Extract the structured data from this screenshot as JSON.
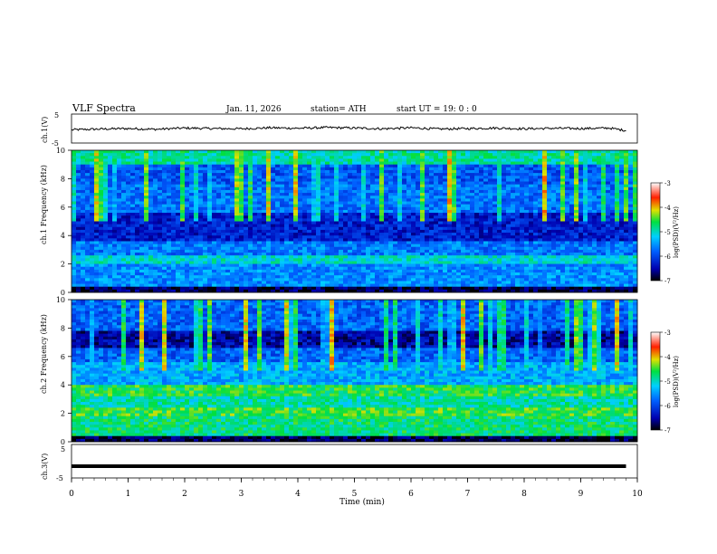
{
  "header": {
    "title": "VLF  Spectra",
    "date": "Jan. 11, 2026",
    "station": "station= ATH",
    "start_ut": "start  UT  =    19: 0   : 0"
  },
  "colorbar": {
    "label": "log(PSD)(V²/Hz)",
    "ticks": [
      "-3",
      "-4",
      "-5",
      "-6",
      "-7"
    ]
  },
  "chart_data": [
    {
      "type": "line",
      "name": "ch.1 waveform",
      "ylabel": "ch.1(V)",
      "ylim": [
        -5,
        5
      ],
      "y_ticks": [
        "5",
        "-5"
      ],
      "x": [
        0,
        0.5,
        1,
        1.5,
        2,
        2.5,
        3,
        3.5,
        4,
        4.5,
        5,
        5.5,
        6,
        6.5,
        7,
        7.5,
        8,
        8.5,
        9,
        9.5,
        9.8
      ],
      "values": [
        -0.5,
        -0.2,
        0.0,
        -0.3,
        0.2,
        0.0,
        -0.1,
        0.3,
        0.1,
        0.4,
        0.2,
        -0.1,
        0.3,
        -0.2,
        0.0,
        0.2,
        -0.1,
        0.1,
        0.0,
        0.2,
        -0.8
      ]
    },
    {
      "type": "heatmap",
      "name": "ch.1 spectrogram",
      "ylabel": "ch.1 Frequency (kHz)",
      "ylim": [
        0,
        10
      ],
      "y_ticks": [
        "10",
        "8",
        "6",
        "4",
        "2",
        "0"
      ],
      "xlim": [
        0,
        10
      ],
      "color_range": [
        -7,
        -3
      ]
    },
    {
      "type": "heatmap",
      "name": "ch.2 spectrogram",
      "ylabel": "ch.2 Frequency (kHz)",
      "ylim": [
        0,
        10
      ],
      "y_ticks": [
        "10",
        "8",
        "6",
        "4",
        "2",
        "0"
      ],
      "xlim": [
        0,
        10
      ],
      "color_range": [
        -7,
        -3
      ]
    },
    {
      "type": "line",
      "name": "ch.3 waveform",
      "ylabel": "ch.3(V)",
      "ylim": [
        -5,
        5
      ],
      "y_ticks": [
        "5",
        "-5"
      ],
      "x": [
        0,
        9.8
      ],
      "values": [
        -2,
        -2
      ]
    }
  ],
  "x_axis": {
    "label": "Time  (min)",
    "ticks": [
      "0",
      "1",
      "2",
      "3",
      "4",
      "5",
      "6",
      "7",
      "8",
      "9",
      "10"
    ]
  }
}
